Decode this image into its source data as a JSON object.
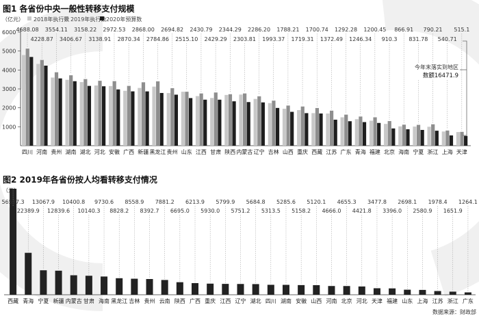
{
  "watermark_color": "#f0f0f0",
  "colors": {
    "y2018": "#c8c8c8",
    "y2019": "#8e8e8e",
    "y2020": "#1e1e1e",
    "bar2": "#222222",
    "axis": "#333333",
    "grid": "#9a9a9a"
  },
  "chart_data": [
    {
      "type": "bar",
      "title": "图1 各省份中央一般性转移支付规模",
      "ylabel": "（亿元）",
      "ylim": [
        0,
        6000
      ],
      "yticks": [
        1000,
        2000,
        3000,
        4000,
        5000,
        6000
      ],
      "categories": [
        "四川",
        "河南",
        "贵州",
        "湖南",
        "湖北",
        "河北",
        "安徽",
        "广西",
        "新疆",
        "黑龙江",
        "贵州",
        "山东",
        "江西",
        "甘肃",
        "陕西",
        "内蒙古",
        "辽宁",
        "吉林",
        "山西",
        "重庆",
        "西藏",
        "江苏",
        "广东",
        "青海",
        "福建",
        "北京",
        "海南",
        "宁夏",
        "浙江",
        "上海",
        "天津"
      ],
      "series": [
        {
          "name": "2018年执行数",
          "values": [
            4790,
            4320,
            3600,
            3480,
            3360,
            3180,
            3150,
            2900,
            3050,
            3120,
            2780,
            2850,
            2620,
            2520,
            2680,
            2700,
            2470,
            2250,
            1950,
            1880,
            1720,
            1700,
            1500,
            1400,
            1320,
            1150,
            1020,
            1010,
            1000,
            750,
            720
          ]
        },
        {
          "name": "2019年执行数",
          "values": [
            5130,
            4530,
            3880,
            3720,
            3520,
            3430,
            3410,
            3160,
            3350,
            3400,
            3040,
            2850,
            2760,
            2810,
            2720,
            2760,
            2610,
            2380,
            2120,
            2070,
            1990,
            1850,
            1640,
            1540,
            1500,
            1300,
            1110,
            1100,
            1130,
            800,
            730
          ]
        },
        {
          "name": "2020年预算数",
          "values": [
            4688.08,
            4228.87,
            3554.11,
            3406.67,
            3158.22,
            3138.91,
            2972.53,
            2870.34,
            2868.0,
            2784.86,
            2694.82,
            2515.1,
            2430.79,
            2429.29,
            2344.29,
            2303.81,
            2286.2,
            1993.37,
            1788.21,
            1719.31,
            1700.74,
            1372.49,
            1292.28,
            1246.34,
            1200.45,
            910.3,
            866.91,
            831.78,
            790.21,
            540.71,
            515.1
          ]
        }
      ],
      "value_labels": [
        "4688.08",
        "4228.87",
        "3554.11",
        "3406.67",
        "3158.22",
        "3138.91",
        "2972.53",
        "2870.34",
        "2868.00",
        "2784.86",
        "2694.82",
        "2515.10",
        "2430.79",
        "2429.29",
        "2344.29",
        "2303.81",
        "2286.20",
        "1993.37",
        "1788.21",
        "1719.31",
        "1700.74",
        "1372.49",
        "1292.28",
        "1246.34",
        "1200.45",
        "910.3",
        "866.91",
        "831.78",
        "790.21",
        "540.71",
        "515.1"
      ],
      "annotation": {
        "line1": "今年末落实到地区",
        "line2": "数额16471.9"
      }
    },
    {
      "type": "bar",
      "title": "图2 2019年各省份按人均看转移支付情况",
      "ylabel": "（元）",
      "categories": [
        "西藏",
        "青海",
        "宁夏",
        "新疆",
        "内蒙古",
        "甘肃",
        "海南",
        "黑龙江",
        "吉林",
        "贵州",
        "云南",
        "陕西",
        "广西",
        "重庆",
        "江西",
        "辽宁",
        "湖北",
        "四川",
        "湖南",
        "安徽",
        "山西",
        "河南",
        "北京",
        "河北",
        "天津",
        "福建",
        "山东",
        "上海",
        "江苏",
        "浙江",
        "广东"
      ],
      "values": [
        56587.3,
        22389.9,
        13067.9,
        12839.6,
        10400.8,
        10140.3,
        9730.6,
        8828.2,
        8558.9,
        8392.7,
        7881.2,
        6695.0,
        6213.9,
        5930.0,
        5799.9,
        5751.2,
        5684.8,
        5313.5,
        5285.6,
        5158.2,
        5120.1,
        4666.0,
        4655.3,
        4421.8,
        3477.8,
        3396.0,
        2698.1,
        2580.9,
        1978.4,
        1651.9,
        1264.1
      ],
      "value_labels": [
        "56587.3",
        "22389.9",
        "13067.9",
        "12839.6",
        "10400.8",
        "10140.3",
        "9730.6",
        "8828.2",
        "8558.9",
        "8392.7",
        "7881.2",
        "6695.0",
        "6213.9",
        "5930.0",
        "5799.9",
        "5751.2",
        "5684.8",
        "5313.5",
        "5285.6",
        "5158.2",
        "5120.1",
        "4666.0",
        "4655.3",
        "4421.8",
        "3477.8",
        "3396.0",
        "2698.1",
        "2580.9",
        "1978.4",
        "1651.9",
        "1264.1"
      ],
      "source": "数据来源：财政部"
    }
  ]
}
